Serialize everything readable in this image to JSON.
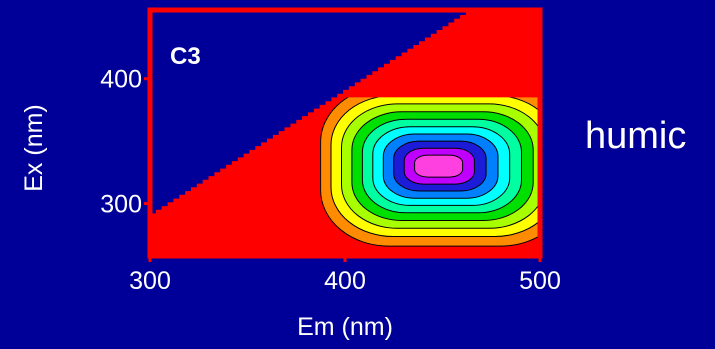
{
  "chart_data": {
    "type": "heatmap",
    "panel_label": "C3",
    "xlabel": "Em (nm)",
    "ylabel": "Ex (nm)",
    "xlim": [
      300,
      500
    ],
    "ylim": [
      258,
      455
    ],
    "x_ticks": [
      300,
      400,
      500
    ],
    "y_ticks": [
      300,
      400
    ],
    "peak": {
      "em": 448,
      "ex": 330
    },
    "scatter_boundary_slope": 1.0,
    "scatter_boundary_offset": -8,
    "data_cutoff_ex": 385,
    "contour_levels": 10,
    "colormap": [
      "#ff0000",
      "#ff8c00",
      "#ffff00",
      "#a8ff00",
      "#00e000",
      "#00ffa0",
      "#00ffff",
      "#0080ff",
      "#1c1cd8",
      "#c000ff",
      "#ff40e0"
    ],
    "background_color": "#000099",
    "axis_color": "#ff0000"
  },
  "side_label": "humic"
}
